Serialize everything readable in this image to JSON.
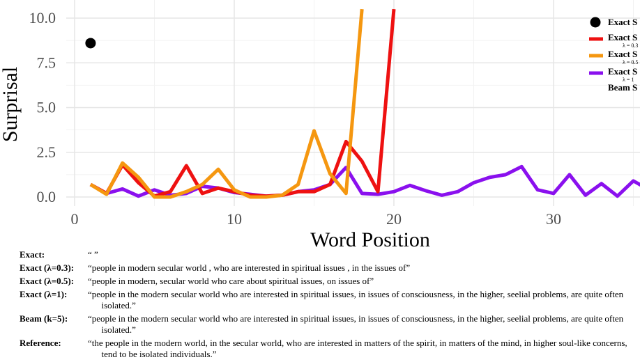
{
  "chart_data": {
    "type": "line",
    "title": "",
    "xlabel": "Word Position",
    "ylabel": "Surprisal",
    "xlim": [
      0,
      36
    ],
    "ylim": [
      0,
      10.5
    ],
    "xticks": [
      0,
      10,
      20,
      30
    ],
    "yticks": [
      0.0,
      2.5,
      5.0,
      7.5,
      10.0
    ],
    "xtick_labels": [
      "0",
      "10",
      "20",
      "30"
    ],
    "ytick_labels": [
      "0.0",
      "2.5",
      "5.0",
      "7.5",
      "10.0"
    ],
    "grid": true,
    "legend_placement": "top-right",
    "series": [
      {
        "name": "Exact S",
        "sub": "",
        "kind": "point",
        "color": "#000000",
        "x": [
          1
        ],
        "y": [
          8.6
        ]
      },
      {
        "name": "Exact S",
        "sub": "λ = 0.3",
        "kind": "line",
        "color": "#ee1111",
        "x": [
          1,
          2,
          3,
          4,
          5,
          6,
          7,
          8,
          9,
          10,
          11,
          12,
          13,
          14,
          15,
          16,
          17,
          18,
          19,
          20
        ],
        "y": [
          0.7,
          0.2,
          1.8,
          0.8,
          0.05,
          0.3,
          1.75,
          0.2,
          0.5,
          0.3,
          0.1,
          0.05,
          0.1,
          0.3,
          0.3,
          0.7,
          3.1,
          2.0,
          0.3,
          10.5
        ]
      },
      {
        "name": "Exact S",
        "sub": "λ = 0.5",
        "kind": "line",
        "color": "#f59710",
        "x": [
          1,
          2,
          3,
          4,
          5,
          6,
          7,
          8,
          9,
          10,
          11,
          12,
          13,
          14,
          15,
          16,
          17,
          18
        ],
        "y": [
          0.7,
          0.15,
          1.9,
          1.1,
          0.0,
          0.0,
          0.3,
          0.7,
          1.55,
          0.4,
          0.0,
          0.0,
          0.1,
          0.7,
          3.7,
          1.3,
          0.2,
          10.5
        ]
      },
      {
        "name": "Exact S",
        "sub": "λ = 1",
        "name2": "Beam S",
        "kind": "line",
        "color": "#8a10ee",
        "x": [
          1,
          2,
          3,
          4,
          5,
          6,
          7,
          8,
          9,
          10,
          11,
          12,
          13,
          14,
          15,
          16,
          17,
          18,
          19,
          20,
          21,
          22,
          23,
          24,
          25,
          26,
          27,
          28,
          29,
          30,
          31,
          32,
          33,
          34,
          35,
          36
        ],
        "y": [
          0.7,
          0.2,
          0.45,
          0.05,
          0.4,
          0.1,
          0.2,
          0.6,
          0.5,
          0.25,
          0.15,
          0.05,
          0.1,
          0.3,
          0.4,
          0.7,
          1.65,
          0.2,
          0.15,
          0.3,
          0.65,
          0.35,
          0.1,
          0.3,
          0.8,
          1.1,
          1.25,
          1.7,
          0.4,
          0.2,
          1.25,
          0.1,
          0.75,
          0.05,
          0.9,
          0.4
        ]
      }
    ]
  },
  "captions": [
    {
      "label": "Exact:",
      "text": "“ ”"
    },
    {
      "label": "Exact (λ=0.3):",
      "text": "“people in modern secular world , who are interested in spiritual issues , in the issues of”"
    },
    {
      "label": "Exact (λ=0.5):",
      "text": "“people in modern, secular world who care about spiritual issues, on issues of”"
    },
    {
      "label": "Exact (λ=1):",
      "text": "“people in the modern secular world who are interested in spiritual issues, in issues of consciousness, in the higher, seelial problems, are quite often isolated.”"
    },
    {
      "label": "Beam (k=5):",
      "text": "“people in the modern secular world who are interested in spiritual issues, in issues of consciousness, in the higher, seelial problems, are quite often isolated.”"
    },
    {
      "label": "Reference:",
      "text": "“the people in the modern world, in the secular world, who are interested in matters of the spirit, in matters of the mind, in higher soul-like concerns, tend to be isolated individuals.”"
    }
  ]
}
